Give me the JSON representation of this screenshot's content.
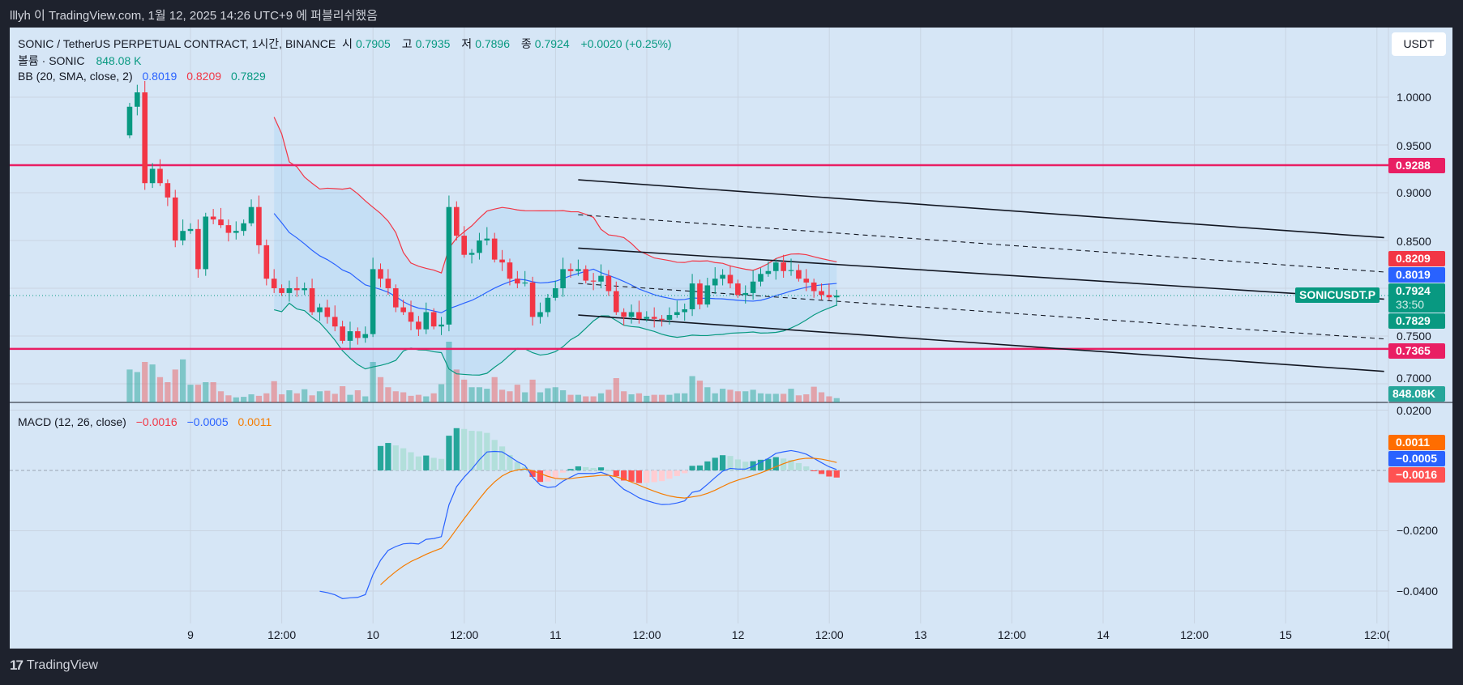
{
  "topbar": {
    "title": "lllyh 이 TradingView.com, 1월 12, 2025 14:26 UTC+9 에 퍼블리쉬했음"
  },
  "legend": {
    "symbol": "SONIC / TetherUS PERPETUAL CONTRACT, 1시간, BINANCE",
    "o_label": "시",
    "o": "0.7905",
    "h_label": "고",
    "h": "0.7935",
    "l_label": "저",
    "l": "0.7896",
    "c_label": "종",
    "c": "0.7924",
    "change": "+0.0020 (+0.25%)",
    "volume_label": "볼륨 · SONIC",
    "volume": "848.08 K",
    "bb_label": "BB (20, SMA, close, 2)",
    "bb_basis": "0.8019",
    "bb_upper": "0.8209",
    "bb_lower": "0.7829",
    "macd_label": "MACD (12, 26, close)",
    "macd_hist": "−0.0016",
    "macd_line": "−0.0005",
    "macd_signal": "0.0011"
  },
  "currency_button": "USDT",
  "price_axis": {
    "ticks": [
      "1.0000",
      "0.9500",
      "0.9000",
      "0.8500",
      "0.7500",
      "0.7000"
    ],
    "tags": {
      "resistance": "0.9288",
      "bb_upper": "0.8209",
      "bb_basis": "0.8019",
      "last": "0.7924",
      "countdown": "33:50",
      "bb_lower": "0.7829",
      "support": "0.7365",
      "volume": "848.08K"
    },
    "symbol_tag": "SONICUSDT.P"
  },
  "macd_axis": {
    "ticks": [
      "0.0200",
      "−0.0200",
      "−0.0400"
    ],
    "tags": {
      "signal": "0.0011",
      "macd": "−0.0005",
      "hist": "−0.0016"
    }
  },
  "time_axis": [
    "9",
    "12:00",
    "10",
    "12:00",
    "11",
    "12:00",
    "12",
    "12:00",
    "13",
    "12:00",
    "14",
    "12:00",
    "15",
    "12:0("
  ],
  "footer": {
    "brand": "TradingView"
  },
  "colors": {
    "up": "#089981",
    "down": "#f23645",
    "level": "#e91e63",
    "basis": "#2962ff",
    "upper": "#f23645",
    "lower": "#089981",
    "signal": "#f57c00"
  },
  "chart_data": {
    "type": "candlestick",
    "title": "SONIC / TetherUS PERPETUAL CONTRACT, 1h, BINANCE",
    "start_time": "2025-01-08 16:00",
    "interval_hours": 1,
    "ylim": [
      0.69,
      1.02
    ],
    "open": [
      0.96,
      0.99,
      1.005,
      0.91,
      0.925,
      0.91,
      0.895,
      0.85,
      0.86,
      0.862,
      0.82,
      0.875,
      0.872,
      0.866,
      0.858,
      0.86,
      0.868,
      0.885,
      0.845,
      0.81,
      0.8,
      0.795,
      0.8,
      0.798,
      0.8,
      0.775,
      0.78,
      0.77,
      0.76,
      0.745,
      0.755,
      0.748,
      0.752,
      0.82,
      0.81,
      0.8,
      0.78,
      0.775,
      0.765,
      0.757,
      0.775,
      0.76,
      0.762,
      0.885,
      0.855,
      0.835,
      0.837,
      0.85,
      0.852,
      0.83,
      0.827,
      0.81,
      0.805,
      0.806,
      0.77,
      0.775,
      0.79,
      0.8,
      0.82,
      0.818,
      0.82,
      0.808,
      0.807,
      0.813,
      0.797,
      0.775,
      0.77,
      0.775,
      0.768,
      0.77,
      0.768,
      0.767,
      0.772,
      0.775,
      0.778,
      0.805,
      0.783,
      0.803,
      0.81,
      0.814,
      0.805,
      0.793,
      0.795,
      0.807,
      0.815,
      0.818,
      0.827,
      0.818,
      0.819,
      0.81,
      0.806,
      0.797,
      0.793,
      0.7905
    ],
    "close": [
      0.99,
      1.005,
      0.91,
      0.925,
      0.91,
      0.895,
      0.85,
      0.86,
      0.862,
      0.82,
      0.875,
      0.872,
      0.866,
      0.858,
      0.86,
      0.868,
      0.885,
      0.845,
      0.81,
      0.8,
      0.795,
      0.8,
      0.798,
      0.8,
      0.775,
      0.78,
      0.77,
      0.76,
      0.745,
      0.755,
      0.748,
      0.752,
      0.82,
      0.81,
      0.8,
      0.78,
      0.775,
      0.765,
      0.757,
      0.775,
      0.76,
      0.762,
      0.885,
      0.855,
      0.835,
      0.837,
      0.85,
      0.852,
      0.83,
      0.827,
      0.81,
      0.805,
      0.806,
      0.77,
      0.775,
      0.79,
      0.8,
      0.82,
      0.818,
      0.82,
      0.808,
      0.807,
      0.813,
      0.797,
      0.775,
      0.77,
      0.775,
      0.768,
      0.77,
      0.768,
      0.767,
      0.772,
      0.775,
      0.778,
      0.805,
      0.783,
      0.803,
      0.81,
      0.814,
      0.805,
      0.793,
      0.795,
      0.807,
      0.815,
      0.818,
      0.827,
      0.818,
      0.819,
      0.81,
      0.806,
      0.797,
      0.793,
      0.7905,
      0.7924
    ],
    "volume_m": [
      6.5,
      6,
      8,
      7.5,
      5,
      4,
      6.5,
      8.5,
      3.5,
      3.5,
      4,
      4,
      2.2,
      1.4,
      1.0,
      1.1,
      1.6,
      1.3,
      1.8,
      4.2,
      1.6,
      2.4,
      1.8,
      2.6,
      1.4,
      2.2,
      2.3,
      1.7,
      3.2,
      1.5,
      2.4,
      1.2,
      8,
      5,
      3,
      2.2,
      2,
      1.3,
      1.5,
      1.2,
      1.8,
      3.6,
      12,
      6.5,
      4.5,
      3,
      3,
      2.7,
      5,
      2.5,
      2.2,
      3.5,
      2,
      4.5,
      2,
      2.8,
      3,
      2.4,
      1.5,
      1.5,
      1.2,
      1.2,
      1.8,
      2.5,
      4.8,
      2.2,
      1.6,
      1.8,
      1.3,
      1.5,
      1.5,
      1.5,
      1.8,
      1.8,
      5.2,
      4.3,
      3,
      1.8,
      2.7,
      2.5,
      2.2,
      2.2,
      2.5,
      1.8,
      1.7,
      1.7,
      1.7,
      2.7,
      1.4,
      1.6,
      3.1,
      2,
      1.2,
      0.85
    ],
    "levels": [
      {
        "price": 0.9288
      },
      {
        "price": 0.7365
      }
    ],
    "trendlines": [
      {
        "style": "solid",
        "start": {
          "time": "2025-01-11 03:00",
          "price": 0.9135
        },
        "end": {
          "time": "2025-01-15 13:00",
          "price": 0.853
        }
      },
      {
        "style": "dashed",
        "start": {
          "time": "2025-01-11 03:00",
          "price": 0.877
        },
        "end": {
          "time": "2025-01-15 13:00",
          "price": 0.817
        }
      },
      {
        "style": "solid",
        "start": {
          "time": "2025-01-11 03:00",
          "price": 0.842
        },
        "end": {
          "time": "2025-01-15 13:00",
          "price": 0.7886
        }
      },
      {
        "style": "dashed",
        "start": {
          "time": "2025-01-11 03:00",
          "price": 0.805
        },
        "end": {
          "time": "2025-01-15 13:00",
          "price": 0.747
        }
      },
      {
        "style": "solid",
        "start": {
          "time": "2025-01-11 03:00",
          "price": 0.772
        },
        "end": {
          "time": "2025-01-15 13:00",
          "price": 0.713
        }
      }
    ],
    "indicators": {
      "bb": {
        "length": 20,
        "mult": 2
      },
      "macd": {
        "fast": 12,
        "slow": 26,
        "signal": 9
      }
    },
    "macd_ylim": [
      -0.05,
      0.025
    ]
  }
}
